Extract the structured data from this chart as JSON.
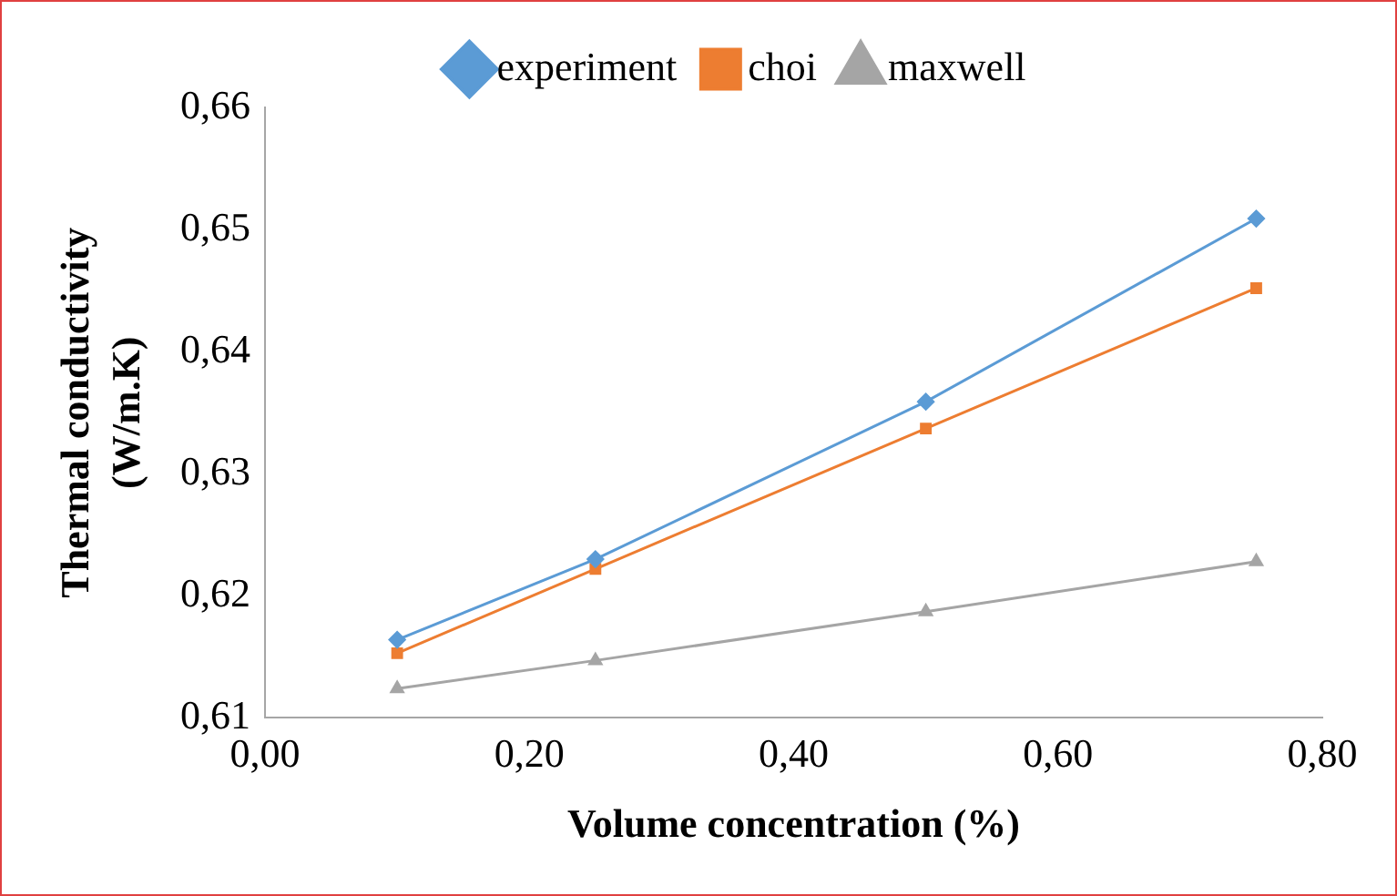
{
  "chart_data": {
    "type": "line",
    "xlabel": "Volume concentration (%)",
    "ylabel": "Thermal conductivity (W/m.K)",
    "xlim": [
      0,
      0.8
    ],
    "xticks": [
      {
        "value": 0,
        "label": "0,00"
      },
      {
        "value": 0.2,
        "label": "0,20"
      },
      {
        "value": 0.4,
        "label": "0,40"
      },
      {
        "value": 0.6,
        "label": "0,60"
      },
      {
        "value": 0.8,
        "label": "0,80"
      }
    ],
    "ylim": [
      0.61,
      0.66
    ],
    "yticks": [
      {
        "value": 0.61,
        "label": "0,61"
      },
      {
        "value": 0.62,
        "label": "0,62"
      },
      {
        "value": 0.63,
        "label": "0,63"
      },
      {
        "value": 0.64,
        "label": "0,64"
      },
      {
        "value": 0.65,
        "label": "0,65"
      },
      {
        "value": 0.66,
        "label": "0,66"
      }
    ],
    "x": [
      0.1,
      0.25,
      0.5,
      0.75
    ],
    "grid": false,
    "legend": "top",
    "line_style": "solid",
    "series": [
      {
        "name": "experiment",
        "color": "#5b9bd5",
        "marker": "diamond",
        "values": [
          0.6164,
          0.623,
          0.6359,
          0.6509
        ]
      },
      {
        "name": "choi",
        "color": "#ed7d31",
        "marker": "square",
        "values": [
          0.6153,
          0.6222,
          0.6337,
          0.6452
        ]
      },
      {
        "name": "maxwell",
        "color": "#a5a5a5",
        "marker": "triangle",
        "values": [
          0.6124,
          0.6147,
          0.6187,
          0.6228
        ]
      }
    ]
  }
}
